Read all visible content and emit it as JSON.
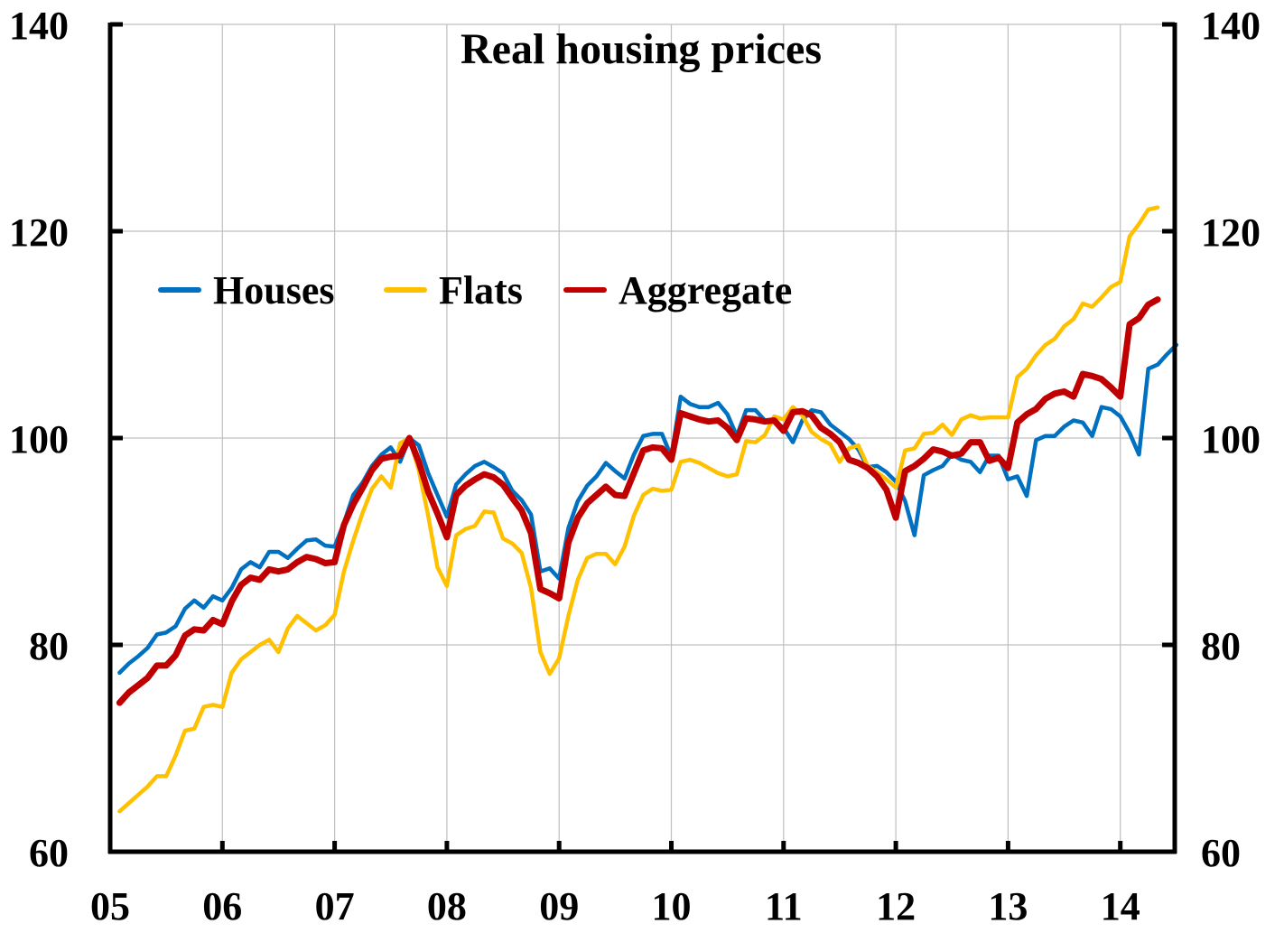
{
  "chart_data": {
    "type": "line",
    "title": "Real housing prices",
    "xlabel": "",
    "ylabel": "",
    "ylim": [
      60,
      140
    ],
    "yticks": [
      60,
      80,
      100,
      120,
      140
    ],
    "ytick_labels": [
      "60",
      "80",
      "100",
      "120",
      "140"
    ],
    "y2ticks": [
      60,
      80,
      100,
      120,
      140
    ],
    "y2tick_labels": [
      "60",
      "80",
      "100",
      "120",
      "140"
    ],
    "xlim": [
      2005,
      2014.75
    ],
    "xticks": [
      2005,
      2006,
      2007,
      2008,
      2009,
      2010,
      2011,
      2012,
      2013,
      2014
    ],
    "xtick_labels": [
      "05",
      "06",
      "07",
      "08",
      "09",
      "10",
      "11",
      "12",
      "13",
      "14"
    ],
    "grid": true,
    "legend_position": "upper-left-inside",
    "x_start": 2005.0833,
    "x_step": 0.08333,
    "series": [
      {
        "name": "Houses",
        "color": "#0070C0",
        "values": [
          77.3,
          78.2,
          78.9,
          79.7,
          81.0,
          81.2,
          81.8,
          83.5,
          84.3,
          83.6,
          84.7,
          84.3,
          85.5,
          87.3,
          88.0,
          87.5,
          89.0,
          89.0,
          88.4,
          89.3,
          90.1,
          90.2,
          89.6,
          89.5,
          91.8,
          94.5,
          95.7,
          97.3,
          98.4,
          99.1,
          97.7,
          100.0,
          99.3,
          96.6,
          94.5,
          92.4,
          95.5,
          96.5,
          97.3,
          97.7,
          97.2,
          96.6,
          94.9,
          94.0,
          92.6,
          87.1,
          87.4,
          86.4,
          91.3,
          93.9,
          95.4,
          96.3,
          97.6,
          96.8,
          96.1,
          98.4,
          100.2,
          100.4,
          100.4,
          98.2,
          104.0,
          103.3,
          103.0,
          103.0,
          103.4,
          102.3,
          100.2,
          102.7,
          102.7,
          101.7,
          101.6,
          101.0,
          99.6,
          101.7,
          102.7,
          102.5,
          101.3,
          100.6,
          99.9,
          98.9,
          97.2,
          97.3,
          96.7,
          95.8,
          93.9,
          90.6,
          96.4,
          96.9,
          97.3,
          98.4,
          97.9,
          97.7,
          96.7,
          98.3,
          98.3,
          96.0,
          96.3,
          94.4,
          99.8,
          100.2,
          100.2,
          101.1,
          101.7,
          101.5,
          100.2,
          103.0,
          102.8,
          102.1,
          100.5,
          98.4,
          106.7,
          107.1,
          108.1,
          109.0
        ]
      },
      {
        "name": "Flats",
        "color": "#FFC000",
        "values": [
          63.9,
          64.7,
          65.5,
          66.3,
          67.3,
          67.3,
          69.3,
          71.7,
          71.9,
          74.0,
          74.2,
          74.0,
          77.3,
          78.6,
          79.3,
          80.0,
          80.5,
          79.3,
          81.6,
          82.8,
          82.1,
          81.4,
          81.9,
          82.9,
          87.1,
          90.1,
          92.8,
          95.1,
          96.3,
          95.2,
          99.5,
          100.0,
          96.9,
          92.5,
          87.5,
          85.7,
          90.6,
          91.2,
          91.5,
          92.9,
          92.8,
          90.3,
          89.8,
          88.9,
          85.5,
          79.3,
          77.2,
          78.7,
          82.8,
          86.3,
          88.4,
          88.8,
          88.8,
          87.8,
          89.5,
          92.5,
          94.5,
          95.1,
          94.9,
          95.0,
          97.7,
          97.9,
          97.6,
          97.1,
          96.6,
          96.3,
          96.5,
          99.7,
          99.6,
          100.3,
          102.1,
          101.8,
          103.0,
          102.2,
          100.6,
          99.9,
          99.4,
          97.7,
          99.0,
          99.3,
          97.3,
          96.7,
          96.0,
          95.2,
          98.8,
          99.0,
          100.4,
          100.5,
          101.3,
          100.3,
          101.8,
          102.2,
          101.9,
          102.0,
          102.0,
          102.0,
          105.9,
          106.7,
          108.0,
          109.0,
          109.6,
          110.8,
          111.5,
          113.0,
          112.7,
          113.6,
          114.6,
          115.1,
          119.5,
          120.7,
          122.1,
          122.3
        ]
      },
      {
        "name": "Aggregate",
        "color": "#C00000",
        "values": [
          74.4,
          75.4,
          76.1,
          76.8,
          78.0,
          78.0,
          79.0,
          80.9,
          81.5,
          81.4,
          82.4,
          82.0,
          84.2,
          85.8,
          86.5,
          86.3,
          87.3,
          87.1,
          87.3,
          88.0,
          88.5,
          88.3,
          87.9,
          88.0,
          91.6,
          93.6,
          95.2,
          96.9,
          98.0,
          98.2,
          98.3,
          100.0,
          97.7,
          94.8,
          92.7,
          90.4,
          94.5,
          95.4,
          96.0,
          96.5,
          96.2,
          95.5,
          94.2,
          93.0,
          90.8,
          85.4,
          85.0,
          84.5,
          89.9,
          92.3,
          93.7,
          94.5,
          95.3,
          94.5,
          94.4,
          96.6,
          98.8,
          99.1,
          99.0,
          97.9,
          102.4,
          102.1,
          101.8,
          101.6,
          101.7,
          101.0,
          99.8,
          101.9,
          101.8,
          101.6,
          101.7,
          100.7,
          102.5,
          102.6,
          102.2,
          101.0,
          100.4,
          99.6,
          97.9,
          97.6,
          97.1,
          96.3,
          95.0,
          92.3,
          96.8,
          97.3,
          98.0,
          98.9,
          98.7,
          98.3,
          98.5,
          99.6,
          99.6,
          97.8,
          98.1,
          97.1,
          101.5,
          102.3,
          102.8,
          103.8,
          104.3,
          104.5,
          104.0,
          106.2,
          106.0,
          105.7,
          104.9,
          104.0,
          111.0,
          111.6,
          112.9,
          113.4
        ]
      }
    ]
  }
}
